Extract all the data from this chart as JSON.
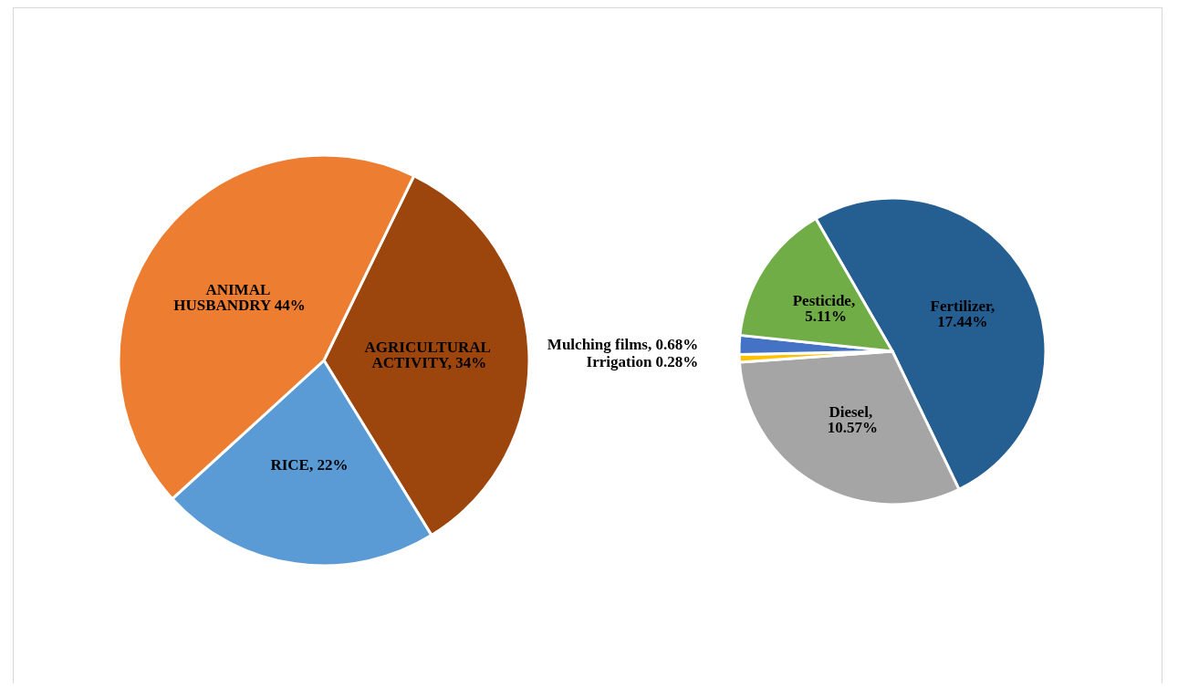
{
  "chart_data": [
    {
      "type": "pie",
      "categories": [
        "AGRICULTURAL ACTIVITY, 34%",
        "RICE, 22%",
        "ANIMAL HUSBANDRY 44%"
      ],
      "values": [
        34,
        22,
        44
      ],
      "colors": [
        "#9c450c",
        "#5b9bd5",
        "#ed7d31"
      ]
    },
    {
      "type": "pie",
      "categories": [
        "Fertilizer,17.44%",
        "Diesel, 10.57%",
        "Irrigation 0.28%",
        "Mulching films, 0.68%",
        "Pesticide, 5.11%"
      ],
      "values": [
        17.44,
        10.57,
        0.28,
        0.68,
        5.11
      ],
      "colors": [
        "#255e91",
        "#a5a5a5",
        "#ffc000",
        "#4472c4",
        "#70ad47"
      ]
    }
  ]
}
